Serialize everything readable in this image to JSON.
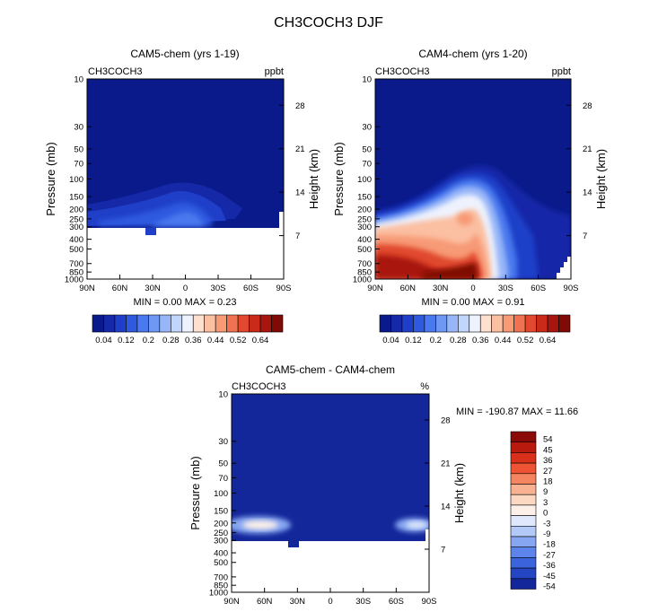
{
  "title": "CH3COCH3 DJF",
  "chart_data": [
    {
      "type": "heatmap",
      "title": "CAM5-chem (yrs 1-19)",
      "left_label": "CH3COCH3",
      "right_label": "ppbt",
      "xlabel": "",
      "ylabel": "Pressure (mb)",
      "y2label": "Height (km)",
      "x_ticks": [
        "90N",
        "60N",
        "30N",
        "0",
        "30S",
        "60S",
        "90S"
      ],
      "y_ticks": [
        "10",
        "30",
        "50",
        "70",
        "100",
        "150",
        "200",
        "250",
        "300",
        "400",
        "500",
        "700",
        "850",
        "1000"
      ],
      "y_tick_values": [
        10,
        30,
        50,
        70,
        100,
        150,
        200,
        250,
        300,
        400,
        500,
        700,
        850,
        1000
      ],
      "y2_ticks": [
        "28",
        "21",
        "14",
        "7"
      ],
      "y2_tick_values": [
        28,
        21,
        14,
        7
      ],
      "ylim": [
        1000,
        10
      ],
      "xlim": [
        90,
        -90
      ],
      "min_max": "MIN = 0.00 MAX = 0.23",
      "colorbar_labels": [
        "0.04",
        "0.12",
        "0.2",
        "0.28",
        "0.36",
        "0.44",
        "0.52",
        "0.64"
      ]
    },
    {
      "type": "heatmap",
      "title": "CAM4-chem (yrs 1-20)",
      "left_label": "CH3COCH3",
      "right_label": "ppbt",
      "xlabel": "",
      "ylabel": "Pressure (mb)",
      "y2label": "Height (km)",
      "x_ticks": [
        "90N",
        "60N",
        "30N",
        "0",
        "30S",
        "60S",
        "90S"
      ],
      "y_ticks": [
        "10",
        "30",
        "50",
        "70",
        "100",
        "150",
        "200",
        "250",
        "300",
        "400",
        "500",
        "700",
        "850",
        "1000"
      ],
      "y_tick_values": [
        10,
        30,
        50,
        70,
        100,
        150,
        200,
        250,
        300,
        400,
        500,
        700,
        850,
        1000
      ],
      "y2_ticks": [
        "28",
        "21",
        "14",
        "7"
      ],
      "y2_tick_values": [
        28,
        21,
        14,
        7
      ],
      "ylim": [
        1000,
        10
      ],
      "xlim": [
        90,
        -90
      ],
      "min_max": "MIN = 0.00 MAX = 0.91",
      "colorbar_labels": [
        "0.04",
        "0.12",
        "0.2",
        "0.28",
        "0.36",
        "0.44",
        "0.52",
        "0.64"
      ]
    },
    {
      "type": "heatmap",
      "title": "CAM5-chem - CAM4-chem",
      "left_label": "CH3COCH3",
      "right_label": "%",
      "xlabel": "",
      "ylabel": "Pressure (mb)",
      "y2label": "Height (km)",
      "x_ticks": [
        "90N",
        "60N",
        "30N",
        "0",
        "30S",
        "60S",
        "90S"
      ],
      "y_ticks": [
        "10",
        "30",
        "50",
        "70",
        "100",
        "150",
        "200",
        "250",
        "300",
        "400",
        "500",
        "700",
        "850",
        "1000"
      ],
      "y_tick_values": [
        10,
        30,
        50,
        70,
        100,
        150,
        200,
        250,
        300,
        400,
        500,
        700,
        850,
        1000
      ],
      "y2_ticks": [
        "28",
        "21",
        "14",
        "7"
      ],
      "y2_tick_values": [
        28,
        21,
        14,
        7
      ],
      "ylim": [
        1000,
        10
      ],
      "xlim": [
        90,
        -90
      ],
      "min_max": "MIN = -190.87 MAX = 11.66",
      "colorbar_labels": [
        "54",
        "45",
        "36",
        "27",
        "18",
        "9",
        "3",
        "0",
        "-3",
        "-9",
        "-18",
        "-27",
        "-36",
        "-45",
        "-54"
      ]
    }
  ],
  "colors": {
    "abs_scale": [
      "#0a1a8a",
      "#1428a8",
      "#1f3fc8",
      "#2f5ae0",
      "#4a78ee",
      "#6f97f4",
      "#97b6f8",
      "#c2d6fb",
      "#eef2fd",
      "#fde0d0",
      "#fbbfa1",
      "#f79a76",
      "#ef7350",
      "#e0492f",
      "#c92a1a",
      "#a8150e",
      "#800a06"
    ],
    "diff_scale": [
      "#8b0a08",
      "#b81a0e",
      "#d8301a",
      "#ee5434",
      "#f58560",
      "#f9b291",
      "#fcd8c2",
      "#fdf0e8",
      "#dfe8fc",
      "#b3c9f7",
      "#86a6f1",
      "#5c84ea",
      "#3a63dc",
      "#2446c2",
      "#13279a"
    ]
  }
}
